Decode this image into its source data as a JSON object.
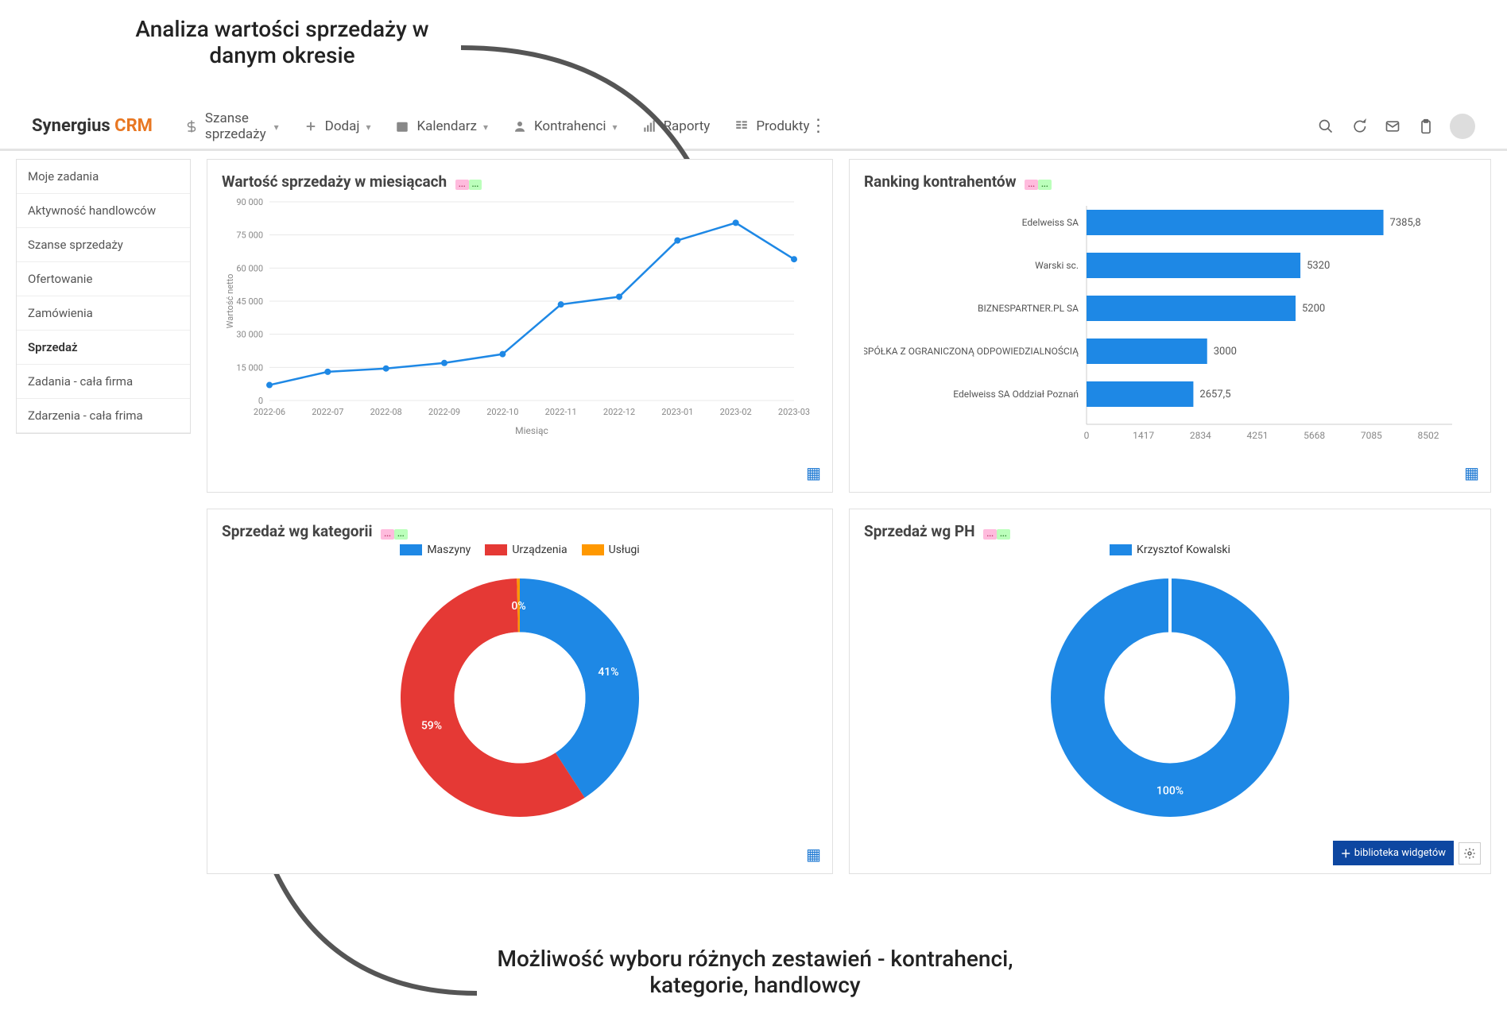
{
  "annotations": {
    "top": "Analiza wartości sprzedaży\nw danym okresie",
    "bottom": "Możliwość wyboru różnych zestawień -\nkontrahenci, kategorie, handlowcy"
  },
  "logo": {
    "main": "Synergius",
    "accent": "CRM"
  },
  "nav": [
    {
      "icon": "dollar",
      "label": "Szanse sprzedaży",
      "dropdown": true
    },
    {
      "icon": "plus",
      "label": "Dodaj",
      "dropdown": true
    },
    {
      "icon": "calendar",
      "label": "Kalendarz",
      "dropdown": true
    },
    {
      "icon": "person",
      "label": "Kontrahenci",
      "dropdown": true
    },
    {
      "icon": "bars",
      "label": "Raporty",
      "dropdown": false
    },
    {
      "icon": "grid",
      "label": "Produkty",
      "dropdown": false
    }
  ],
  "right_icons": [
    "search",
    "chat",
    "mail",
    "clipboard",
    "avatar"
  ],
  "sidebar": {
    "items": [
      "Moje zadania",
      "Aktywność handlowców",
      "Szanse sprzedaży",
      "Ofertowanie",
      "Zamówienia",
      "Sprzedaż",
      "Zadania - cała firma",
      "Zdarzenia - cała frima"
    ],
    "selected_index": 5
  },
  "widgets": {
    "line": {
      "title": "Wartość sprzedaży w miesiącach",
      "y_label": "Wartość netto",
      "x_label": "Miesiąc",
      "y_ticks": [
        0,
        15000,
        30000,
        45000,
        60000,
        75000,
        90000
      ],
      "y_tick_labels": [
        "0",
        "15 000",
        "30 000",
        "45 000",
        "60 000",
        "75 000",
        "90 000"
      ],
      "x_labels": [
        "2022-06",
        "2022-07",
        "2022-08",
        "2022-09",
        "2022-10",
        "2022-11",
        "2022-12",
        "2023-01",
        "2023-02",
        "2023-03"
      ],
      "values": [
        7000,
        13000,
        14500,
        17000,
        21000,
        43500,
        47000,
        72500,
        80500,
        64000
      ],
      "line_color": "#1e88e5",
      "grid_color": "#e8e8e8",
      "tick_font_size": 11,
      "tick_color": "#888888"
    },
    "bars": {
      "title": "Ranking kontrahentów",
      "items": [
        {
          "label": "Edelweiss SA",
          "value": 7385.8
        },
        {
          "label": "Warski sc.",
          "value": 5320
        },
        {
          "label": "BIZNESPARTNER.PL SA",
          "value": 5200
        },
        {
          "label": "CIE IT\" SPÓŁKA Z OGRANICZONĄ ODPOWIEDZIALNOŚCIĄ",
          "value": 3000
        },
        {
          "label": "Edelweiss SA Oddział Poznań",
          "value": 2657.5
        }
      ],
      "x_ticks": [
        0,
        1417,
        2834,
        4251,
        5668,
        7085,
        8502
      ],
      "bar_color": "#1e88e5",
      "axis_color": "#888888",
      "label_font_size": 12,
      "value_font_size": 13
    },
    "donut_cat": {
      "title": "Sprzedaż wg kategorii",
      "legend": [
        {
          "label": "Maszyny",
          "color": "#1e88e5"
        },
        {
          "label": "Urządzenia",
          "color": "#e53935"
        },
        {
          "label": "Usługi",
          "color": "#ff9800"
        }
      ],
      "slices": [
        {
          "label": "41%",
          "value": 41,
          "color": "#1e88e5"
        },
        {
          "label": "59%",
          "value": 59,
          "color": "#e53935"
        },
        {
          "label": "0%",
          "value": 0.4,
          "color": "#ff9800"
        }
      ],
      "inner_ratio": 0.55,
      "label_color": "#ffffff",
      "label_font_size": 14
    },
    "donut_ph": {
      "title": "Sprzedaż wg PH",
      "legend": [
        {
          "label": "Krzysztof Kowalski",
          "color": "#1e88e5"
        }
      ],
      "slices": [
        {
          "label": "100%",
          "value": 100,
          "color": "#1e88e5"
        }
      ],
      "inner_ratio": 0.55,
      "label_color": "#ffffff",
      "label_font_size": 14
    }
  },
  "bottom_button": "biblioteka widgetów"
}
